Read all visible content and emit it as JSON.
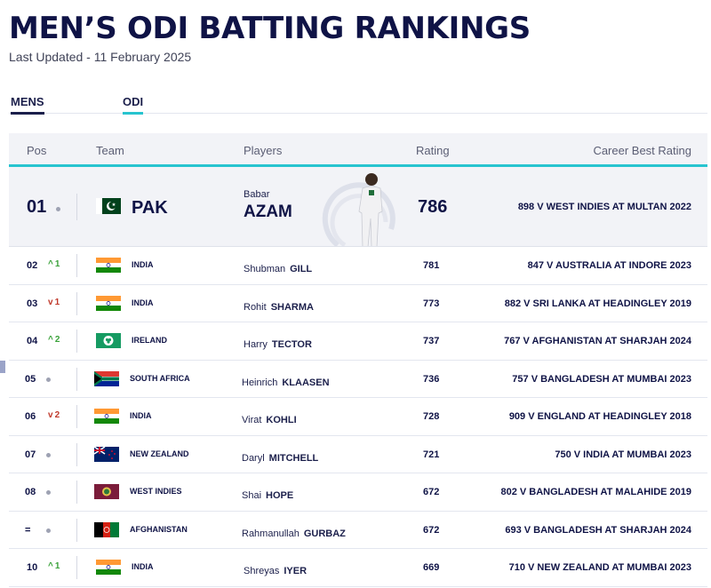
{
  "header": {
    "title": "MEN’S ODI BATTING RANKINGS",
    "last_updated": "Last Updated - 11 February 2025"
  },
  "filters": {
    "gender": "MENS",
    "format": "ODI"
  },
  "table": {
    "columns": {
      "pos": "Pos",
      "team": "Team",
      "players": "Players",
      "rating": "Rating",
      "career": "Career Best Rating"
    },
    "top": {
      "pos": "01",
      "team": "PAK",
      "first": "Babar",
      "last": "AZAM",
      "rating": "786",
      "career": "898 V WEST INDIES AT MULTAN 2022",
      "flag_icon": "pakistan-flag-icon"
    },
    "rows": [
      {
        "pos": "02",
        "move": "up",
        "move_arrow": "^",
        "move_num": "1",
        "team": "INDIA",
        "first": "Shubman",
        "last": "GILL",
        "rating": "781",
        "career": "847 V AUSTRALIA AT INDORE 2023"
      },
      {
        "pos": "03",
        "move": "down",
        "move_arrow": "v",
        "move_num": "1",
        "team": "INDIA",
        "first": "Rohit",
        "last": "SHARMA",
        "rating": "773",
        "career": "882 V SRI LANKA AT HEADINGLEY 2019"
      },
      {
        "pos": "04",
        "move": "up",
        "move_arrow": "^",
        "move_num": "2",
        "team": "IRELAND",
        "first": "Harry",
        "last": "TECTOR",
        "rating": "737",
        "career": "767 V AFGHANISTAN AT SHARJAH 2024"
      },
      {
        "pos": "05",
        "move": "same",
        "team": "SOUTH AFRICA",
        "first": "Heinrich",
        "last": "KLAASEN",
        "rating": "736",
        "career": "757 V BANGLADESH AT MUMBAI 2023"
      },
      {
        "pos": "06",
        "move": "down",
        "move_arrow": "v",
        "move_num": "2",
        "team": "INDIA",
        "first": "Virat",
        "last": "KOHLI",
        "rating": "728",
        "career": "909 V ENGLAND AT HEADINGLEY 2018"
      },
      {
        "pos": "07",
        "move": "same",
        "team": "NEW ZEALAND",
        "first": "Daryl",
        "last": "MITCHELL",
        "rating": "721",
        "career": "750 V INDIA AT MUMBAI 2023"
      },
      {
        "pos": "08",
        "move": "same",
        "team": "WEST INDIES",
        "first": "Shai",
        "last": "HOPE",
        "rating": "672",
        "career": "802 V BANGLADESH AT MALAHIDE 2019"
      },
      {
        "pos": "=",
        "move": "same",
        "team": "AFGHANISTAN",
        "first": "Rahmanullah",
        "last": "GURBAZ",
        "rating": "672",
        "career": "693 V BANGLADESH AT SHARJAH 2024"
      },
      {
        "pos": "10",
        "move": "up",
        "move_arrow": "^",
        "move_num": "1",
        "team": "INDIA",
        "first": "Shreyas",
        "last": "IYER",
        "rating": "669",
        "career": "710 V NEW ZEALAND AT MUMBAI 2023"
      }
    ]
  },
  "colors": {
    "navy": "#0f1346",
    "accent": "#27c4cf",
    "up": "#3aa23a",
    "down": "#c0392b"
  }
}
